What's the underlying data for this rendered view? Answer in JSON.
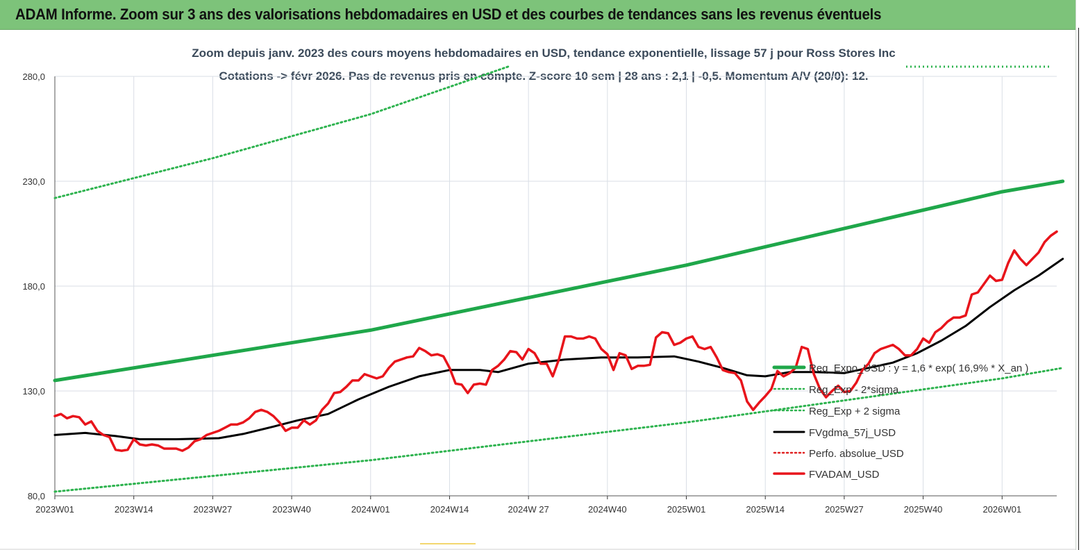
{
  "header": {
    "title": "ADAM Informe. Zoom sur 3 ans des valorisations hebdomadaires en USD et des courbes de tendances sans les revenus éventuels"
  },
  "chart_data": {
    "type": "line",
    "subtitle_line1": "Zoom depuis janv. 2023 des cours moyens hebdomadaires en USD, tendance exponentielle, lissage 57 j pour Ross Stores Inc",
    "subtitle_line2": "Cotations -> févr 2026.  Pas de revenus pris en compte. Z-score 10 sem | 28 ans : 2,1 | -0,5. Momentum A/V (20/0): 12.",
    "ylim": [
      80,
      280
    ],
    "y_ticks": [
      "80,0",
      "130,0",
      "180,0",
      "230,0",
      "280,0"
    ],
    "y_tick_values": [
      80,
      130,
      180,
      230,
      280
    ],
    "x_ticks": [
      "2023W01",
      "2023W14",
      "2023W27",
      "2023W40",
      "2024W01",
      "2024W14",
      "2024W 27",
      "2024W40",
      "2025W01",
      "2025W14",
      "2025W27",
      "2025W40",
      "2026W01"
    ],
    "x_tick_weeks": [
      0,
      13,
      26,
      39,
      52,
      65,
      78,
      91,
      104,
      117,
      130,
      143,
      156
    ],
    "week_count": 166,
    "grid": true,
    "legend_position": "right",
    "series": [
      {
        "name": "Reg_Expo_USD : y = 1,6 * exp( 16,9% *  X_an )",
        "color": "#1fa74a",
        "style": "solid-thick",
        "points": [
          [
            0,
            135.0
          ],
          [
            52,
            159.0
          ],
          [
            104,
            190.0
          ],
          [
            156,
            225.0
          ],
          [
            166,
            230.0
          ]
        ]
      },
      {
        "name": "Reg_Exp - 2*sigma",
        "color": "#2eb34f",
        "style": "dotted",
        "points": [
          [
            0,
            82.0
          ],
          [
            52,
            97.0
          ],
          [
            104,
            115.0
          ],
          [
            156,
            136.0
          ],
          [
            166,
            141.0
          ]
        ]
      },
      {
        "name": "Reg_Exp + 2 sigma",
        "color": "#2eb34f",
        "style": "dotted",
        "points": [
          [
            0,
            222.0
          ],
          [
            26,
            241.0
          ],
          [
            52,
            262.0
          ],
          [
            75,
            285.0
          ]
        ]
      },
      {
        "name": "FVgdma_57j_USD",
        "color": "#000000",
        "style": "solid",
        "points": [
          [
            0,
            109.0
          ],
          [
            5,
            110.0
          ],
          [
            10,
            108.5
          ],
          [
            14,
            107.0
          ],
          [
            20,
            107.0
          ],
          [
            27,
            107.5
          ],
          [
            31,
            109.5
          ],
          [
            36,
            113.0
          ],
          [
            40,
            116.0
          ],
          [
            45,
            119.0
          ],
          [
            50,
            126.0
          ],
          [
            55,
            132.0
          ],
          [
            60,
            137.0
          ],
          [
            65,
            140.0
          ],
          [
            70,
            140.0
          ],
          [
            73,
            139.0
          ],
          [
            78,
            143.0
          ],
          [
            84,
            145.0
          ],
          [
            90,
            146.0
          ],
          [
            96,
            146.0
          ],
          [
            102,
            146.5
          ],
          [
            106,
            144.0
          ],
          [
            110,
            141.0
          ],
          [
            114,
            137.5
          ],
          [
            117,
            137.0
          ],
          [
            121,
            139.0
          ],
          [
            125,
            139.0
          ],
          [
            130,
            138.5
          ],
          [
            134,
            141.0
          ],
          [
            138,
            143.5
          ],
          [
            142,
            148.0
          ],
          [
            146,
            154.0
          ],
          [
            150,
            161.0
          ],
          [
            154,
            170.0
          ],
          [
            158,
            178.0
          ],
          [
            162,
            185.0
          ],
          [
            166,
            193.0
          ]
        ]
      },
      {
        "name": "Perfo. absolue_USD",
        "color": "#e02020",
        "style": "dotted",
        "points": []
      },
      {
        "name": "FVADAM_USD",
        "color": "#e8141b",
        "style": "solid-thick",
        "points": [
          [
            0,
            118.0
          ],
          [
            1,
            119.0
          ],
          [
            2,
            117.0
          ],
          [
            3,
            118.0
          ],
          [
            4,
            117.5
          ],
          [
            5,
            114.0
          ],
          [
            6,
            115.5
          ],
          [
            7,
            111.0
          ],
          [
            8,
            109.0
          ],
          [
            9,
            108.0
          ],
          [
            10,
            102.0
          ],
          [
            11,
            101.5
          ],
          [
            12,
            102.0
          ],
          [
            13,
            107.0
          ],
          [
            14,
            104.5
          ],
          [
            15,
            104.0
          ],
          [
            16,
            104.5
          ],
          [
            17,
            104.0
          ],
          [
            18,
            102.5
          ],
          [
            19,
            102.5
          ],
          [
            20,
            102.5
          ],
          [
            21,
            101.5
          ],
          [
            22,
            103.0
          ],
          [
            23,
            106.0
          ],
          [
            24,
            107.0
          ],
          [
            25,
            109.0
          ],
          [
            26,
            110.0
          ],
          [
            27,
            111.0
          ],
          [
            28,
            112.5
          ],
          [
            29,
            114.0
          ],
          [
            30,
            114.0
          ],
          [
            31,
            115.0
          ],
          [
            32,
            117.0
          ],
          [
            33,
            120.0
          ],
          [
            34,
            121.0
          ],
          [
            35,
            120.0
          ],
          [
            36,
            118.0
          ],
          [
            37,
            115.0
          ],
          [
            38,
            111.0
          ],
          [
            39,
            112.5
          ],
          [
            40,
            112.5
          ],
          [
            41,
            116.0
          ],
          [
            42,
            114.0
          ],
          [
            43,
            116.0
          ],
          [
            44,
            121.0
          ],
          [
            45,
            124.0
          ],
          [
            46,
            129.0
          ],
          [
            47,
            129.5
          ],
          [
            48,
            132.0
          ],
          [
            49,
            135.0
          ],
          [
            50,
            135.0
          ],
          [
            51,
            138.0
          ],
          [
            52,
            137.0
          ],
          [
            53,
            136.0
          ],
          [
            54,
            137.0
          ],
          [
            55,
            141.0
          ],
          [
            56,
            144.0
          ],
          [
            57,
            145.0
          ],
          [
            58,
            146.0
          ],
          [
            59,
            146.5
          ],
          [
            60,
            150.5
          ],
          [
            61,
            149.0
          ],
          [
            62,
            147.0
          ],
          [
            63,
            147.5
          ],
          [
            64,
            146.5
          ],
          [
            65,
            141.0
          ],
          [
            66,
            133.5
          ],
          [
            67,
            133.0
          ],
          [
            68,
            129.0
          ],
          [
            69,
            133.0
          ],
          [
            70,
            133.5
          ],
          [
            71,
            133.0
          ],
          [
            72,
            140.0
          ],
          [
            73,
            142.0
          ],
          [
            74,
            145.0
          ],
          [
            75,
            149.0
          ],
          [
            76,
            148.5
          ],
          [
            77,
            145.0
          ],
          [
            78,
            150.0
          ],
          [
            79,
            148.0
          ],
          [
            80,
            143.0
          ],
          [
            81,
            143.0
          ],
          [
            82,
            137.0
          ],
          [
            83,
            145.0
          ],
          [
            84,
            156.0
          ],
          [
            85,
            156.0
          ],
          [
            86,
            155.0
          ],
          [
            87,
            155.0
          ],
          [
            88,
            156.0
          ],
          [
            89,
            155.0
          ],
          [
            90,
            150.0
          ],
          [
            91,
            147.5
          ],
          [
            92,
            140.0
          ],
          [
            93,
            148.0
          ],
          [
            94,
            147.0
          ],
          [
            95,
            140.5
          ],
          [
            96,
            142.0
          ],
          [
            97,
            142.0
          ],
          [
            98,
            142.5
          ],
          [
            99,
            155.5
          ],
          [
            100,
            158.0
          ],
          [
            101,
            157.5
          ],
          [
            102,
            152.0
          ],
          [
            103,
            153.0
          ],
          [
            104,
            155.0
          ],
          [
            105,
            156.0
          ],
          [
            106,
            151.0
          ],
          [
            107,
            150.0
          ],
          [
            108,
            151.0
          ],
          [
            109,
            146.0
          ],
          [
            110,
            140.0
          ],
          [
            111,
            139.0
          ],
          [
            112,
            138.5
          ],
          [
            113,
            135.0
          ],
          [
            114,
            125.0
          ],
          [
            115,
            121.0
          ],
          [
            116,
            124.5
          ],
          [
            117,
            127.5
          ],
          [
            118,
            131.0
          ],
          [
            119,
            139.5
          ],
          [
            120,
            137.0
          ],
          [
            121,
            138.5
          ],
          [
            122,
            141.0
          ],
          [
            123,
            151.0
          ],
          [
            124,
            150.0
          ],
          [
            125,
            138.0
          ],
          [
            126,
            131.0
          ],
          [
            127,
            127.0
          ],
          [
            128,
            130.0
          ],
          [
            129,
            132.5
          ],
          [
            130,
            129.5
          ],
          [
            131,
            130.0
          ],
          [
            132,
            134.0
          ],
          [
            133,
            140.0
          ],
          [
            134,
            143.0
          ],
          [
            135,
            148.0
          ],
          [
            136,
            150.0
          ],
          [
            137,
            151.0
          ],
          [
            138,
            152.0
          ],
          [
            139,
            150.0
          ],
          [
            140,
            147.0
          ],
          [
            141,
            147.0
          ],
          [
            142,
            150.0
          ],
          [
            143,
            155.0
          ],
          [
            144,
            153.0
          ],
          [
            145,
            158.0
          ],
          [
            146,
            160.0
          ],
          [
            147,
            163.0
          ],
          [
            148,
            165.0
          ],
          [
            149,
            165.0
          ],
          [
            150,
            166.0
          ],
          [
            151,
            176.0
          ],
          [
            152,
            177.0
          ],
          [
            153,
            181.0
          ],
          [
            154,
            185.0
          ],
          [
            155,
            182.5
          ],
          [
            156,
            183.0
          ],
          [
            157,
            191.0
          ],
          [
            158,
            197.0
          ],
          [
            159,
            193.0
          ],
          [
            160,
            190.0
          ],
          [
            161,
            193.0
          ],
          [
            162,
            196.0
          ],
          [
            163,
            201.0
          ],
          [
            164,
            204.0
          ],
          [
            165,
            206.0
          ]
        ]
      }
    ]
  }
}
